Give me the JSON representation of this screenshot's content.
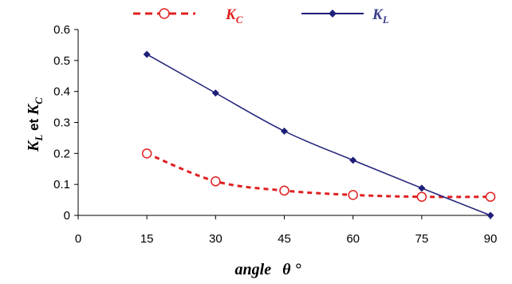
{
  "chart_data": {
    "type": "line",
    "title": "",
    "x": [
      15,
      30,
      45,
      60,
      75,
      90
    ],
    "xlim": [
      0,
      90
    ],
    "ylim": [
      0,
      0.6
    ],
    "x_ticks": [
      "0",
      "15",
      "30",
      "45",
      "60",
      "75",
      "90"
    ],
    "y_ticks": [
      "0",
      "0.1",
      "0.2",
      "0.3",
      "0.4",
      "0.5",
      "0.6"
    ],
    "xlabel": {
      "main": "angle",
      "symbol": "θ",
      "unit": "°"
    },
    "ylabel": {
      "k1": "K",
      "k1_sub": "L",
      "middle": " et ",
      "k2": "K",
      "k2_sub": "C"
    },
    "grid": false,
    "legend_position": "top",
    "series": [
      {
        "name_main": "K",
        "name_sub": "C",
        "values": [
          0.2,
          0.11,
          0.08,
          0.066,
          0.06,
          0.06
        ],
        "color": "#e02020",
        "line_style": "dashed",
        "marker": "open-circle",
        "smooth": true
      },
      {
        "name_main": "K",
        "name_sub": "L",
        "values": [
          0.52,
          0.395,
          0.272,
          0.178,
          0.088,
          0.0
        ],
        "color": "#1f1f7a",
        "line_style": "solid",
        "marker": "diamond",
        "smooth": true
      }
    ]
  }
}
